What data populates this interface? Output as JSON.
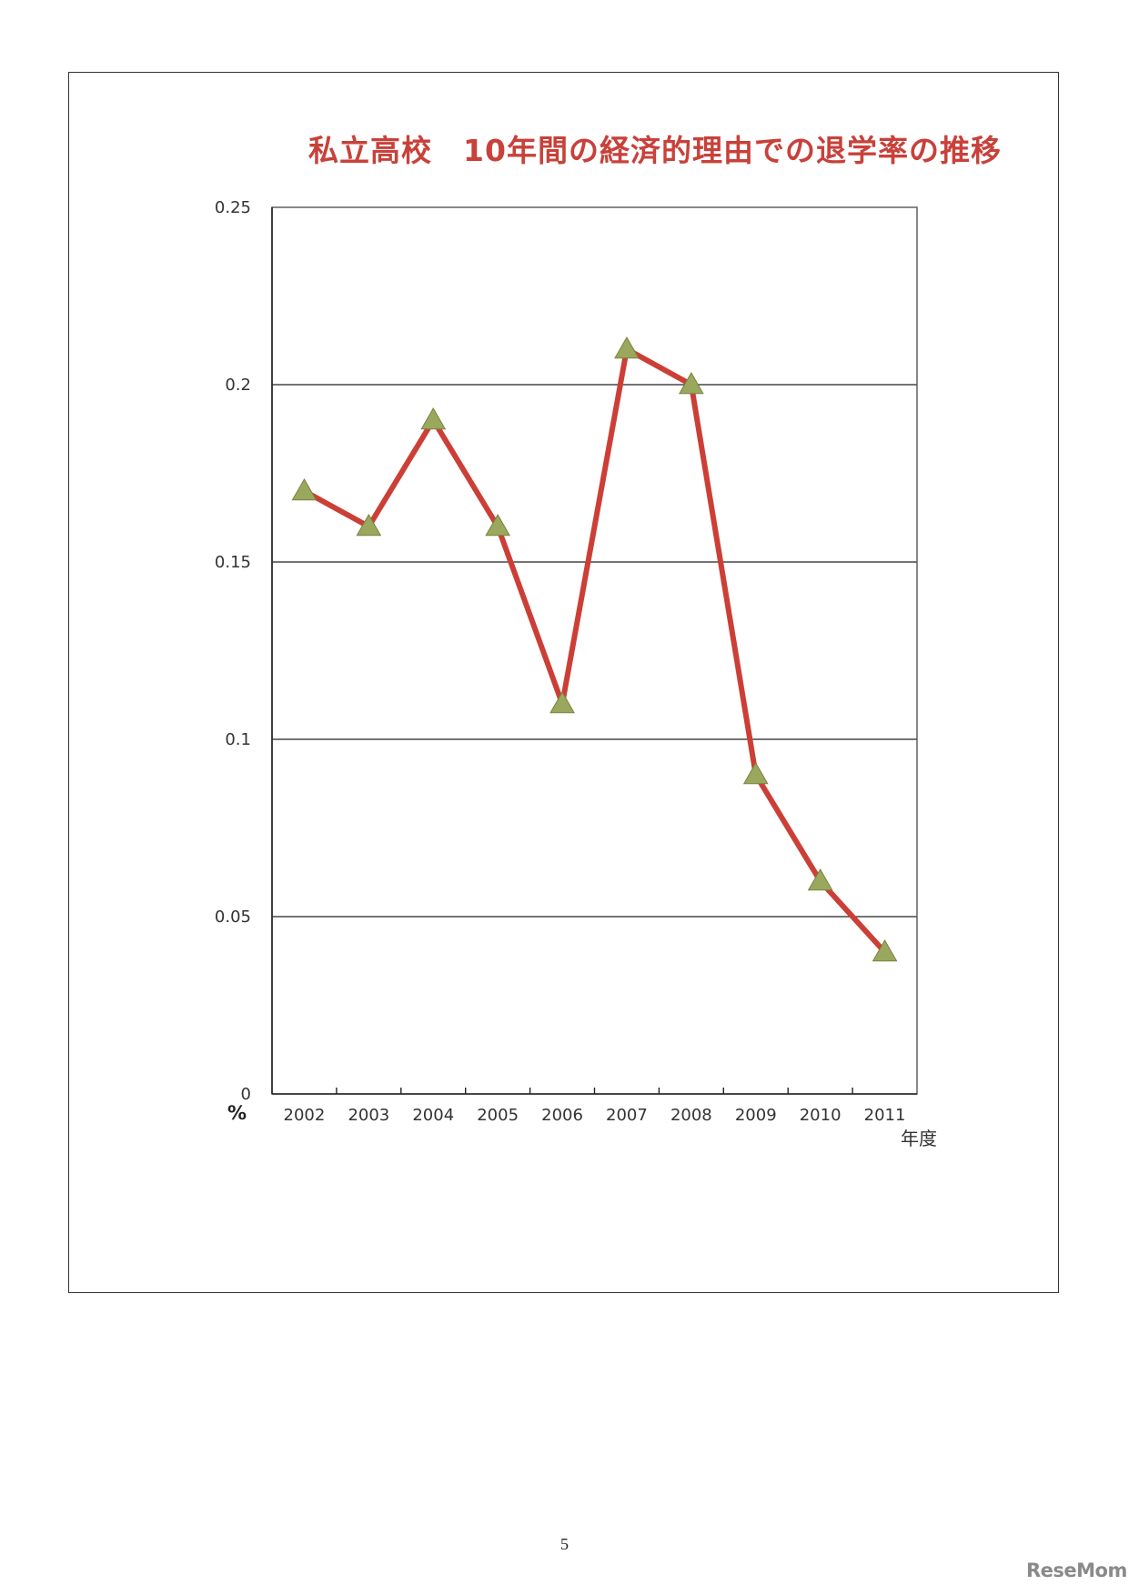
{
  "chart_data": {
    "type": "line",
    "title": "私立高校　10年間の経済的理由での退学率の推移",
    "categories": [
      "2002",
      "2003",
      "2004",
      "2005",
      "2006",
      "2007",
      "2008",
      "2009",
      "2010",
      "2011"
    ],
    "series": [
      {
        "values": [
          0.17,
          0.16,
          0.19,
          0.16,
          0.11,
          0.21,
          0.2,
          0.09,
          0.06,
          0.04
        ]
      }
    ],
    "ylim": [
      0,
      0.25
    ],
    "yticks": [
      "0",
      "0.05",
      "0.1",
      "0.15",
      "0.2",
      "0.25"
    ],
    "ylabel": "%",
    "xlabel": "年度",
    "grid": true,
    "colors": {
      "line": "#cc3f36",
      "marker": "#9aa85e",
      "title": "#c8413a"
    }
  },
  "page": {
    "page_number": "5",
    "watermark": "ReseMom"
  }
}
